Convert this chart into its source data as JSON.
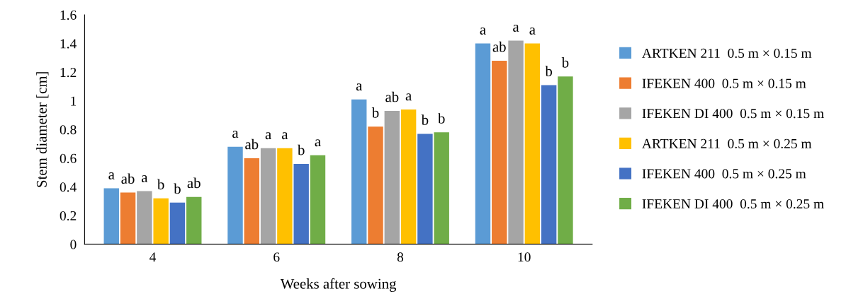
{
  "chart_data": {
    "type": "bar",
    "xlabel": "Weeks after sowing",
    "ylabel": "Stem diameter [cm]",
    "categories": [
      "4",
      "6",
      "8",
      "10"
    ],
    "series": [
      {
        "name": "ARTKEN 211  0.5 m × 0.15 m",
        "color": "#5b9bd5",
        "values": [
          0.39,
          0.68,
          1.01,
          1.4
        ],
        "value_labels": [
          "a",
          "a",
          "a",
          "a"
        ]
      },
      {
        "name": "IFEKEN 400  0.5 m × 0.15 m",
        "color": "#ed7d31",
        "values": [
          0.36,
          0.6,
          0.82,
          1.28
        ],
        "value_labels": [
          "ab",
          "ab",
          "b",
          "ab"
        ]
      },
      {
        "name": "IFEKEN DI 400  0.5 m × 0.15 m",
        "color": "#a5a5a5",
        "values": [
          0.37,
          0.67,
          0.93,
          1.42
        ],
        "value_labels": [
          "a",
          "a",
          "ab",
          "a"
        ]
      },
      {
        "name": "ARTKEN 211  0.5 m × 0.25 m",
        "color": "#ffc000",
        "values": [
          0.32,
          0.67,
          0.94,
          1.4
        ],
        "value_labels": [
          "b",
          "a",
          "a",
          "a"
        ]
      },
      {
        "name": "IFEKEN 400  0.5 m × 0.25 m",
        "color": "#4472c4",
        "values": [
          0.29,
          0.56,
          0.77,
          1.11
        ],
        "value_labels": [
          "b",
          "b",
          "b",
          "b"
        ]
      },
      {
        "name": "IFEKEN DI 400  0.5 m × 0.25 m",
        "color": "#70ad47",
        "values": [
          0.33,
          0.62,
          0.78,
          1.17
        ],
        "value_labels": [
          "ab",
          "a",
          "b",
          "b"
        ]
      }
    ],
    "ylim": [
      0,
      1.6
    ],
    "yticks": [
      0,
      0.2,
      0.4,
      0.6,
      0.8,
      1,
      1.2,
      1.4,
      1.6
    ],
    "grid": false,
    "legend": "right"
  }
}
